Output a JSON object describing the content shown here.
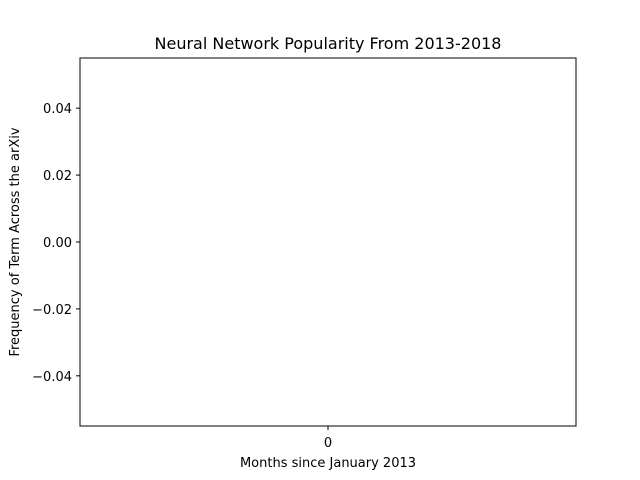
{
  "chart_data": {
    "type": "line",
    "title": "Neural Network Popularity From 2013-2018",
    "xlabel": "Months since January 2013",
    "ylabel": "Frequency of Term Across the arXiv",
    "x": [],
    "series": [
      {
        "values": []
      }
    ],
    "xlim": [
      -0.055,
      0.055
    ],
    "ylim": [
      -0.055,
      0.055
    ],
    "xticks": [
      {
        "value": 0,
        "label": "0"
      }
    ],
    "yticks": [
      {
        "value": -0.04,
        "label": "−0.04"
      },
      {
        "value": -0.02,
        "label": "−0.02"
      },
      {
        "value": 0.0,
        "label": "0.00"
      },
      {
        "value": 0.02,
        "label": "0.02"
      },
      {
        "value": 0.04,
        "label": "0.04"
      }
    ],
    "grid": false,
    "legend": "none"
  }
}
